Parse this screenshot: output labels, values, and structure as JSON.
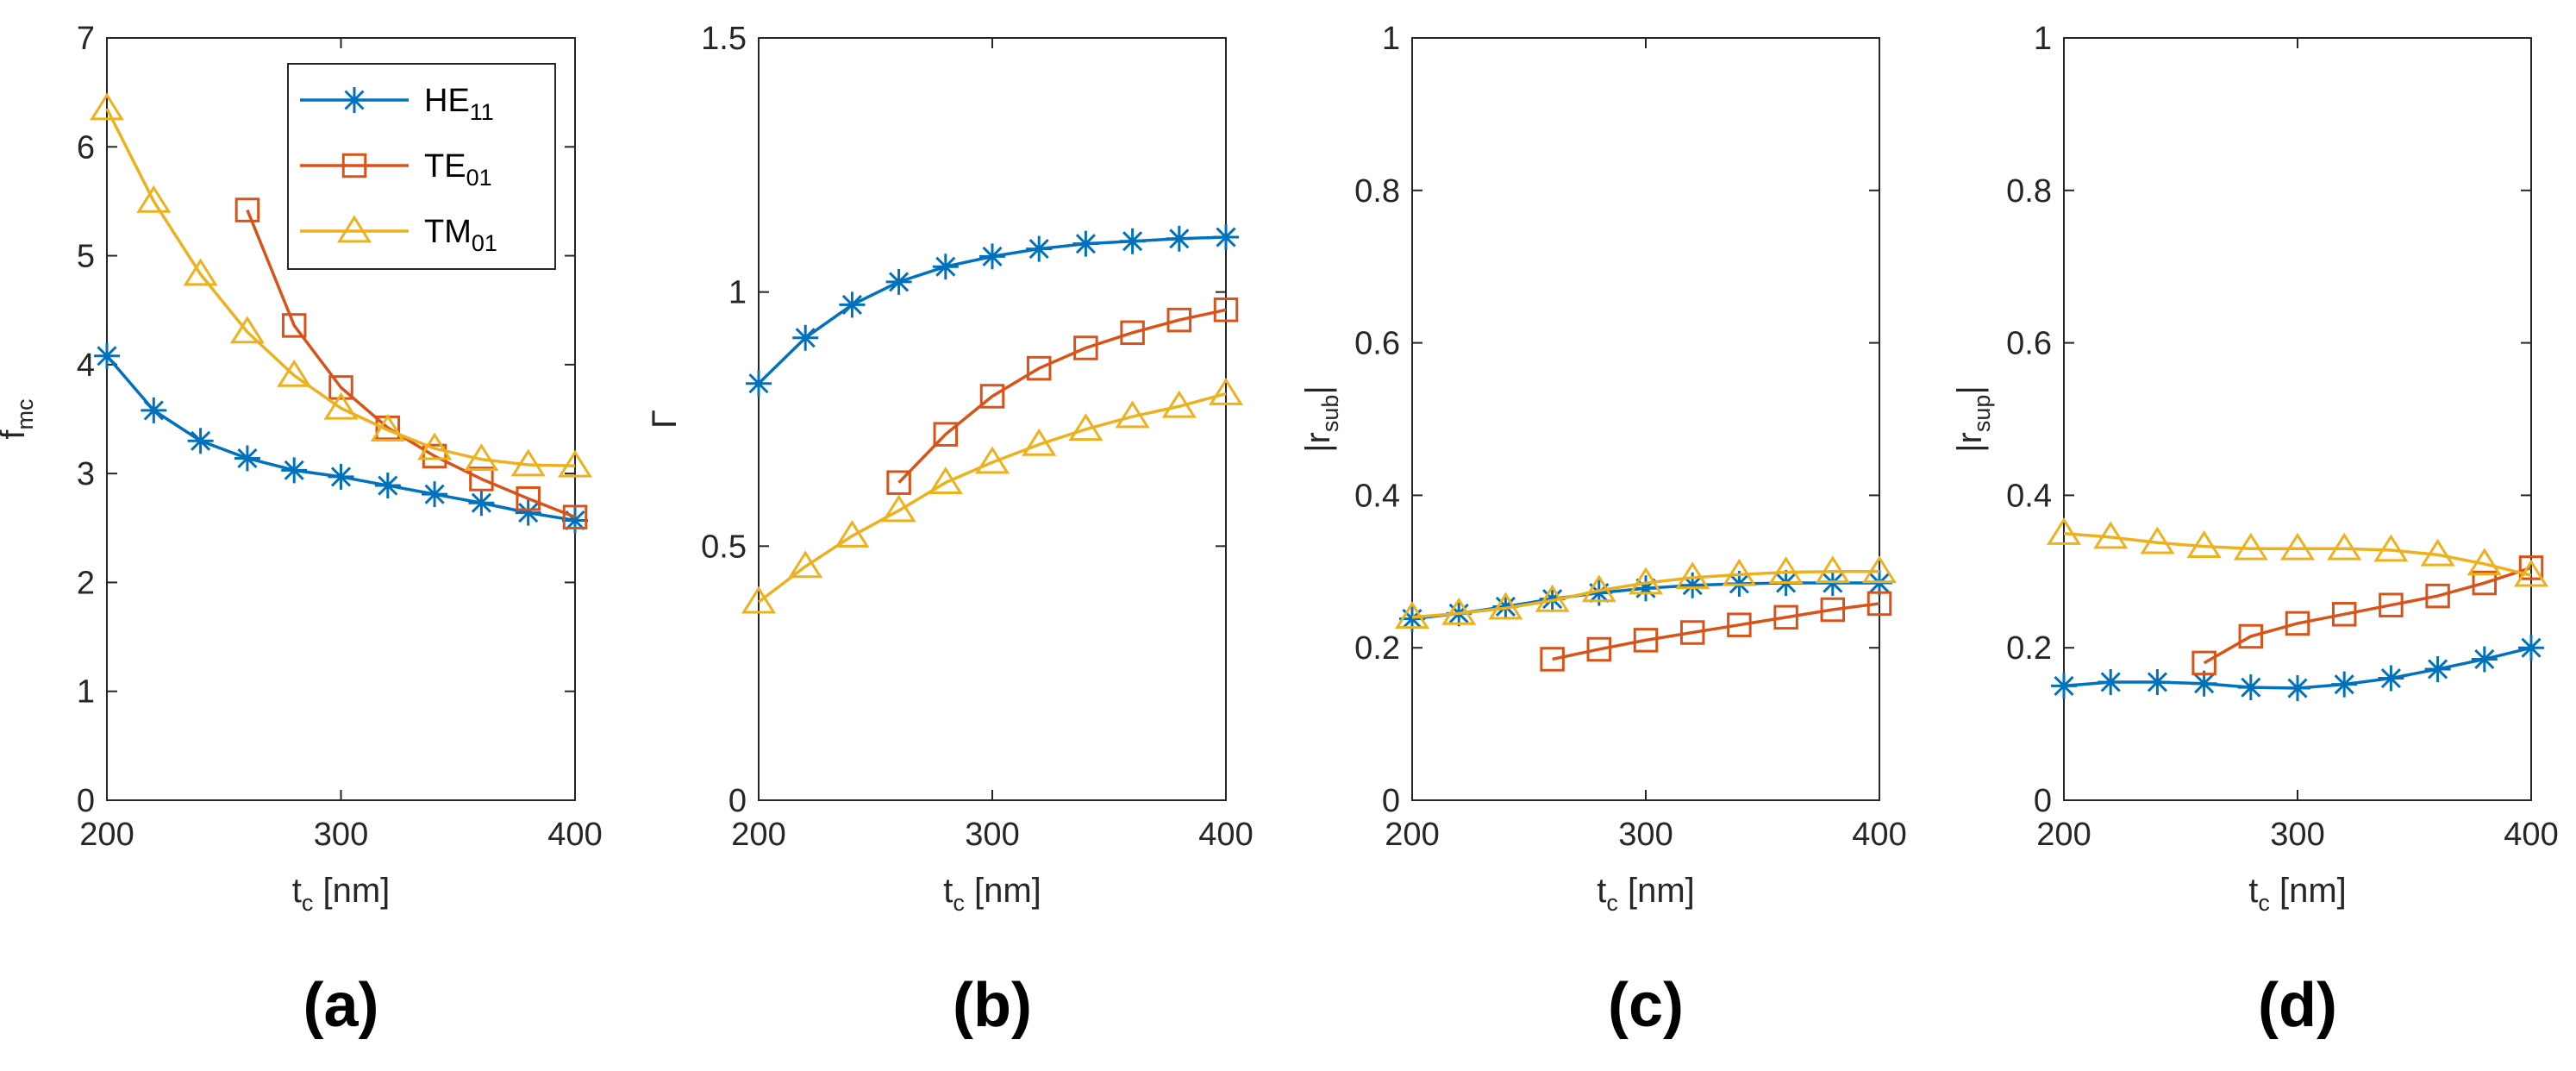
{
  "colors": {
    "HE11": "#0072BD",
    "TE01": "#D95319",
    "TM01": "#EDB120",
    "axis": "#262626"
  },
  "legend": {
    "placement": "top-right of panel (a)",
    "entries": [
      {
        "base": "HE",
        "sub": "11",
        "series": "HE11",
        "marker": "asterisk"
      },
      {
        "base": "TE",
        "sub": "01",
        "series": "TE01",
        "marker": "square"
      },
      {
        "base": "TM",
        "sub": "01",
        "series": "TM01",
        "marker": "triangle"
      }
    ]
  },
  "chart_data": [
    {
      "type": "line",
      "panel_label": "(a)",
      "xlabel": {
        "base": "t",
        "sub": "c",
        "rest": " [nm]"
      },
      "ylabel": {
        "base": "f",
        "sub": "mc"
      },
      "xlim": [
        200,
        400
      ],
      "ylim": [
        0,
        7
      ],
      "xticks": [
        "200",
        "300",
        "400"
      ],
      "yticks": [
        "0",
        "1",
        "2",
        "3",
        "4",
        "5",
        "6",
        "7"
      ],
      "grid": false,
      "series": [
        {
          "name": "HE11",
          "x": [
            200,
            220,
            240,
            260,
            280,
            300,
            320,
            340,
            360,
            380,
            400
          ],
          "y": [
            4.08,
            3.58,
            3.3,
            3.14,
            3.03,
            2.97,
            2.89,
            2.81,
            2.73,
            2.64,
            2.57
          ]
        },
        {
          "name": "TE01",
          "x": [
            260,
            280,
            300,
            320,
            340,
            360,
            380,
            400
          ],
          "y": [
            5.42,
            4.36,
            3.79,
            3.42,
            3.16,
            2.95,
            2.77,
            2.6
          ]
        },
        {
          "name": "TM01",
          "x": [
            200,
            220,
            240,
            260,
            280,
            300,
            320,
            340,
            360,
            380,
            400
          ],
          "y": [
            6.35,
            5.5,
            4.83,
            4.3,
            3.9,
            3.6,
            3.4,
            3.23,
            3.13,
            3.08,
            3.07
          ]
        }
      ]
    },
    {
      "type": "line",
      "panel_label": "(b)",
      "xlabel": {
        "base": "t",
        "sub": "c",
        "rest": " [nm]"
      },
      "ylabel": {
        "base": "Γ",
        "sub": ""
      },
      "xlim": [
        200,
        400
      ],
      "ylim": [
        0,
        1.5
      ],
      "xticks": [
        "200",
        "300",
        "400"
      ],
      "yticks": [
        "0",
        "0.5",
        "1",
        "1.5"
      ],
      "grid": false,
      "series": [
        {
          "name": "HE11",
          "x": [
            200,
            220,
            240,
            260,
            280,
            300,
            320,
            340,
            360,
            380,
            400
          ],
          "y": [
            0.82,
            0.91,
            0.975,
            1.02,
            1.05,
            1.07,
            1.085,
            1.095,
            1.1,
            1.105,
            1.108
          ]
        },
        {
          "name": "TE01",
          "x": [
            260,
            280,
            300,
            320,
            340,
            360,
            380,
            400
          ],
          "y": [
            0.625,
            0.72,
            0.795,
            0.85,
            0.89,
            0.92,
            0.945,
            0.965
          ]
        },
        {
          "name": "TM01",
          "x": [
            200,
            220,
            240,
            260,
            280,
            300,
            320,
            340,
            360,
            380,
            400
          ],
          "y": [
            0.39,
            0.46,
            0.52,
            0.57,
            0.625,
            0.665,
            0.7,
            0.73,
            0.755,
            0.775,
            0.8
          ]
        }
      ]
    },
    {
      "type": "line",
      "panel_label": "(c)",
      "xlabel": {
        "base": "t",
        "sub": "c",
        "rest": " [nm]"
      },
      "ylabel": {
        "base": "|r",
        "sub": "sub",
        "rest": "|"
      },
      "xlim": [
        200,
        400
      ],
      "ylim": [
        0,
        1
      ],
      "xticks": [
        "200",
        "300",
        "400"
      ],
      "yticks": [
        "0",
        "0.2",
        "0.4",
        "0.6",
        "0.8",
        "1"
      ],
      "grid": false,
      "series": [
        {
          "name": "HE11",
          "x": [
            200,
            220,
            240,
            260,
            280,
            300,
            320,
            340,
            360,
            380,
            400
          ],
          "y": [
            0.238,
            0.245,
            0.254,
            0.264,
            0.272,
            0.278,
            0.282,
            0.284,
            0.285,
            0.285,
            0.285
          ]
        },
        {
          "name": "TE01",
          "x": [
            260,
            280,
            300,
            320,
            340,
            360,
            380,
            400
          ],
          "y": [
            0.185,
            0.198,
            0.21,
            0.22,
            0.23,
            0.24,
            0.25,
            0.258
          ]
        },
        {
          "name": "TM01",
          "x": [
            200,
            220,
            240,
            260,
            280,
            300,
            320,
            340,
            360,
            380,
            400
          ],
          "y": [
            0.24,
            0.245,
            0.252,
            0.262,
            0.275,
            0.285,
            0.292,
            0.296,
            0.299,
            0.3,
            0.3
          ]
        }
      ]
    },
    {
      "type": "line",
      "panel_label": "(d)",
      "xlabel": {
        "base": "t",
        "sub": "c",
        "rest": " [nm]"
      },
      "ylabel": {
        "base": "|r",
        "sub": "sup",
        "rest": "|"
      },
      "xlim": [
        200,
        400
      ],
      "ylim": [
        0,
        1
      ],
      "xticks": [
        "200",
        "300",
        "400"
      ],
      "yticks": [
        "0",
        "0.2",
        "0.4",
        "0.6",
        "0.8",
        "1"
      ],
      "grid": false,
      "series": [
        {
          "name": "HE11",
          "x": [
            200,
            220,
            240,
            260,
            280,
            300,
            320,
            340,
            360,
            380,
            400
          ],
          "y": [
            0.15,
            0.155,
            0.155,
            0.153,
            0.148,
            0.147,
            0.152,
            0.16,
            0.172,
            0.185,
            0.2
          ]
        },
        {
          "name": "TE01",
          "x": [
            260,
            280,
            300,
            320,
            340,
            360,
            380,
            400
          ],
          "y": [
            0.18,
            0.215,
            0.232,
            0.244,
            0.256,
            0.268,
            0.285,
            0.305
          ]
        },
        {
          "name": "TM01",
          "x": [
            200,
            220,
            240,
            260,
            280,
            300,
            320,
            340,
            360,
            380,
            400
          ],
          "y": [
            0.35,
            0.345,
            0.338,
            0.333,
            0.33,
            0.33,
            0.33,
            0.328,
            0.322,
            0.31,
            0.295
          ]
        }
      ]
    }
  ]
}
